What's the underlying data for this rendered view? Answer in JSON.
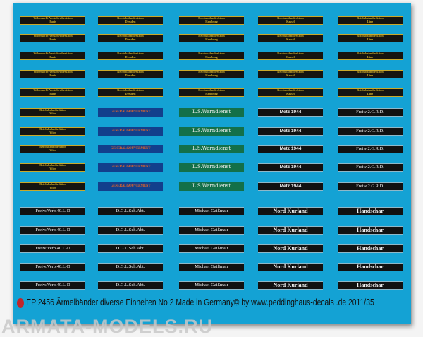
{
  "sheet": {
    "background": "#14a2d4",
    "groups": [
      {
        "style": "gold",
        "rows": 5,
        "columns": [
          {
            "line1": "Wehrmacht-Verkehrsdirektion",
            "line2": "Paris"
          },
          {
            "line1": "Reichsbahndirektion",
            "line2": "Dresden"
          },
          {
            "line1": "Reichsbahndirektion",
            "line2": "Hamburg"
          },
          {
            "line1": "Reichsbahndirektion",
            "line2": "Kassel"
          },
          {
            "line1": "Reichsbahndirektion",
            "line2": "Linz"
          }
        ]
      },
      {
        "style": "mixed",
        "rows": 5,
        "columns": [
          {
            "line1": "Reichsbahndirektion",
            "line2": "Wien",
            "style": "gold"
          },
          {
            "line1": "GENERALGOUVERMENT",
            "style": "blue"
          },
          {
            "line1": "L.S.Warndienst",
            "style": "green"
          },
          {
            "line1": "Metz 1944",
            "style": "dark sans"
          },
          {
            "line1": "Freiw.2.G.R.D.",
            "style": "dark"
          }
        ]
      },
      {
        "style": "dark",
        "rows": 5,
        "columns": [
          {
            "line1": "Freiw.Verb.40.L-D",
            "style": "dark"
          },
          {
            "line1": "D.G.L.Sch.Abt.",
            "style": "dark"
          },
          {
            "line1": "Michael Gaißmair",
            "style": "dark"
          },
          {
            "line1": "Nord Kurland",
            "style": "dark big"
          },
          {
            "line1": "Handschar",
            "style": "dark big"
          }
        ]
      }
    ]
  },
  "footer": {
    "text": "EP 2456 Ärmelbänder diverse Einheiten No 2   Made in Germany© by www.peddinghaus-decals .de 2011/35"
  },
  "watermark": "ARMATA-MODELS.RU"
}
